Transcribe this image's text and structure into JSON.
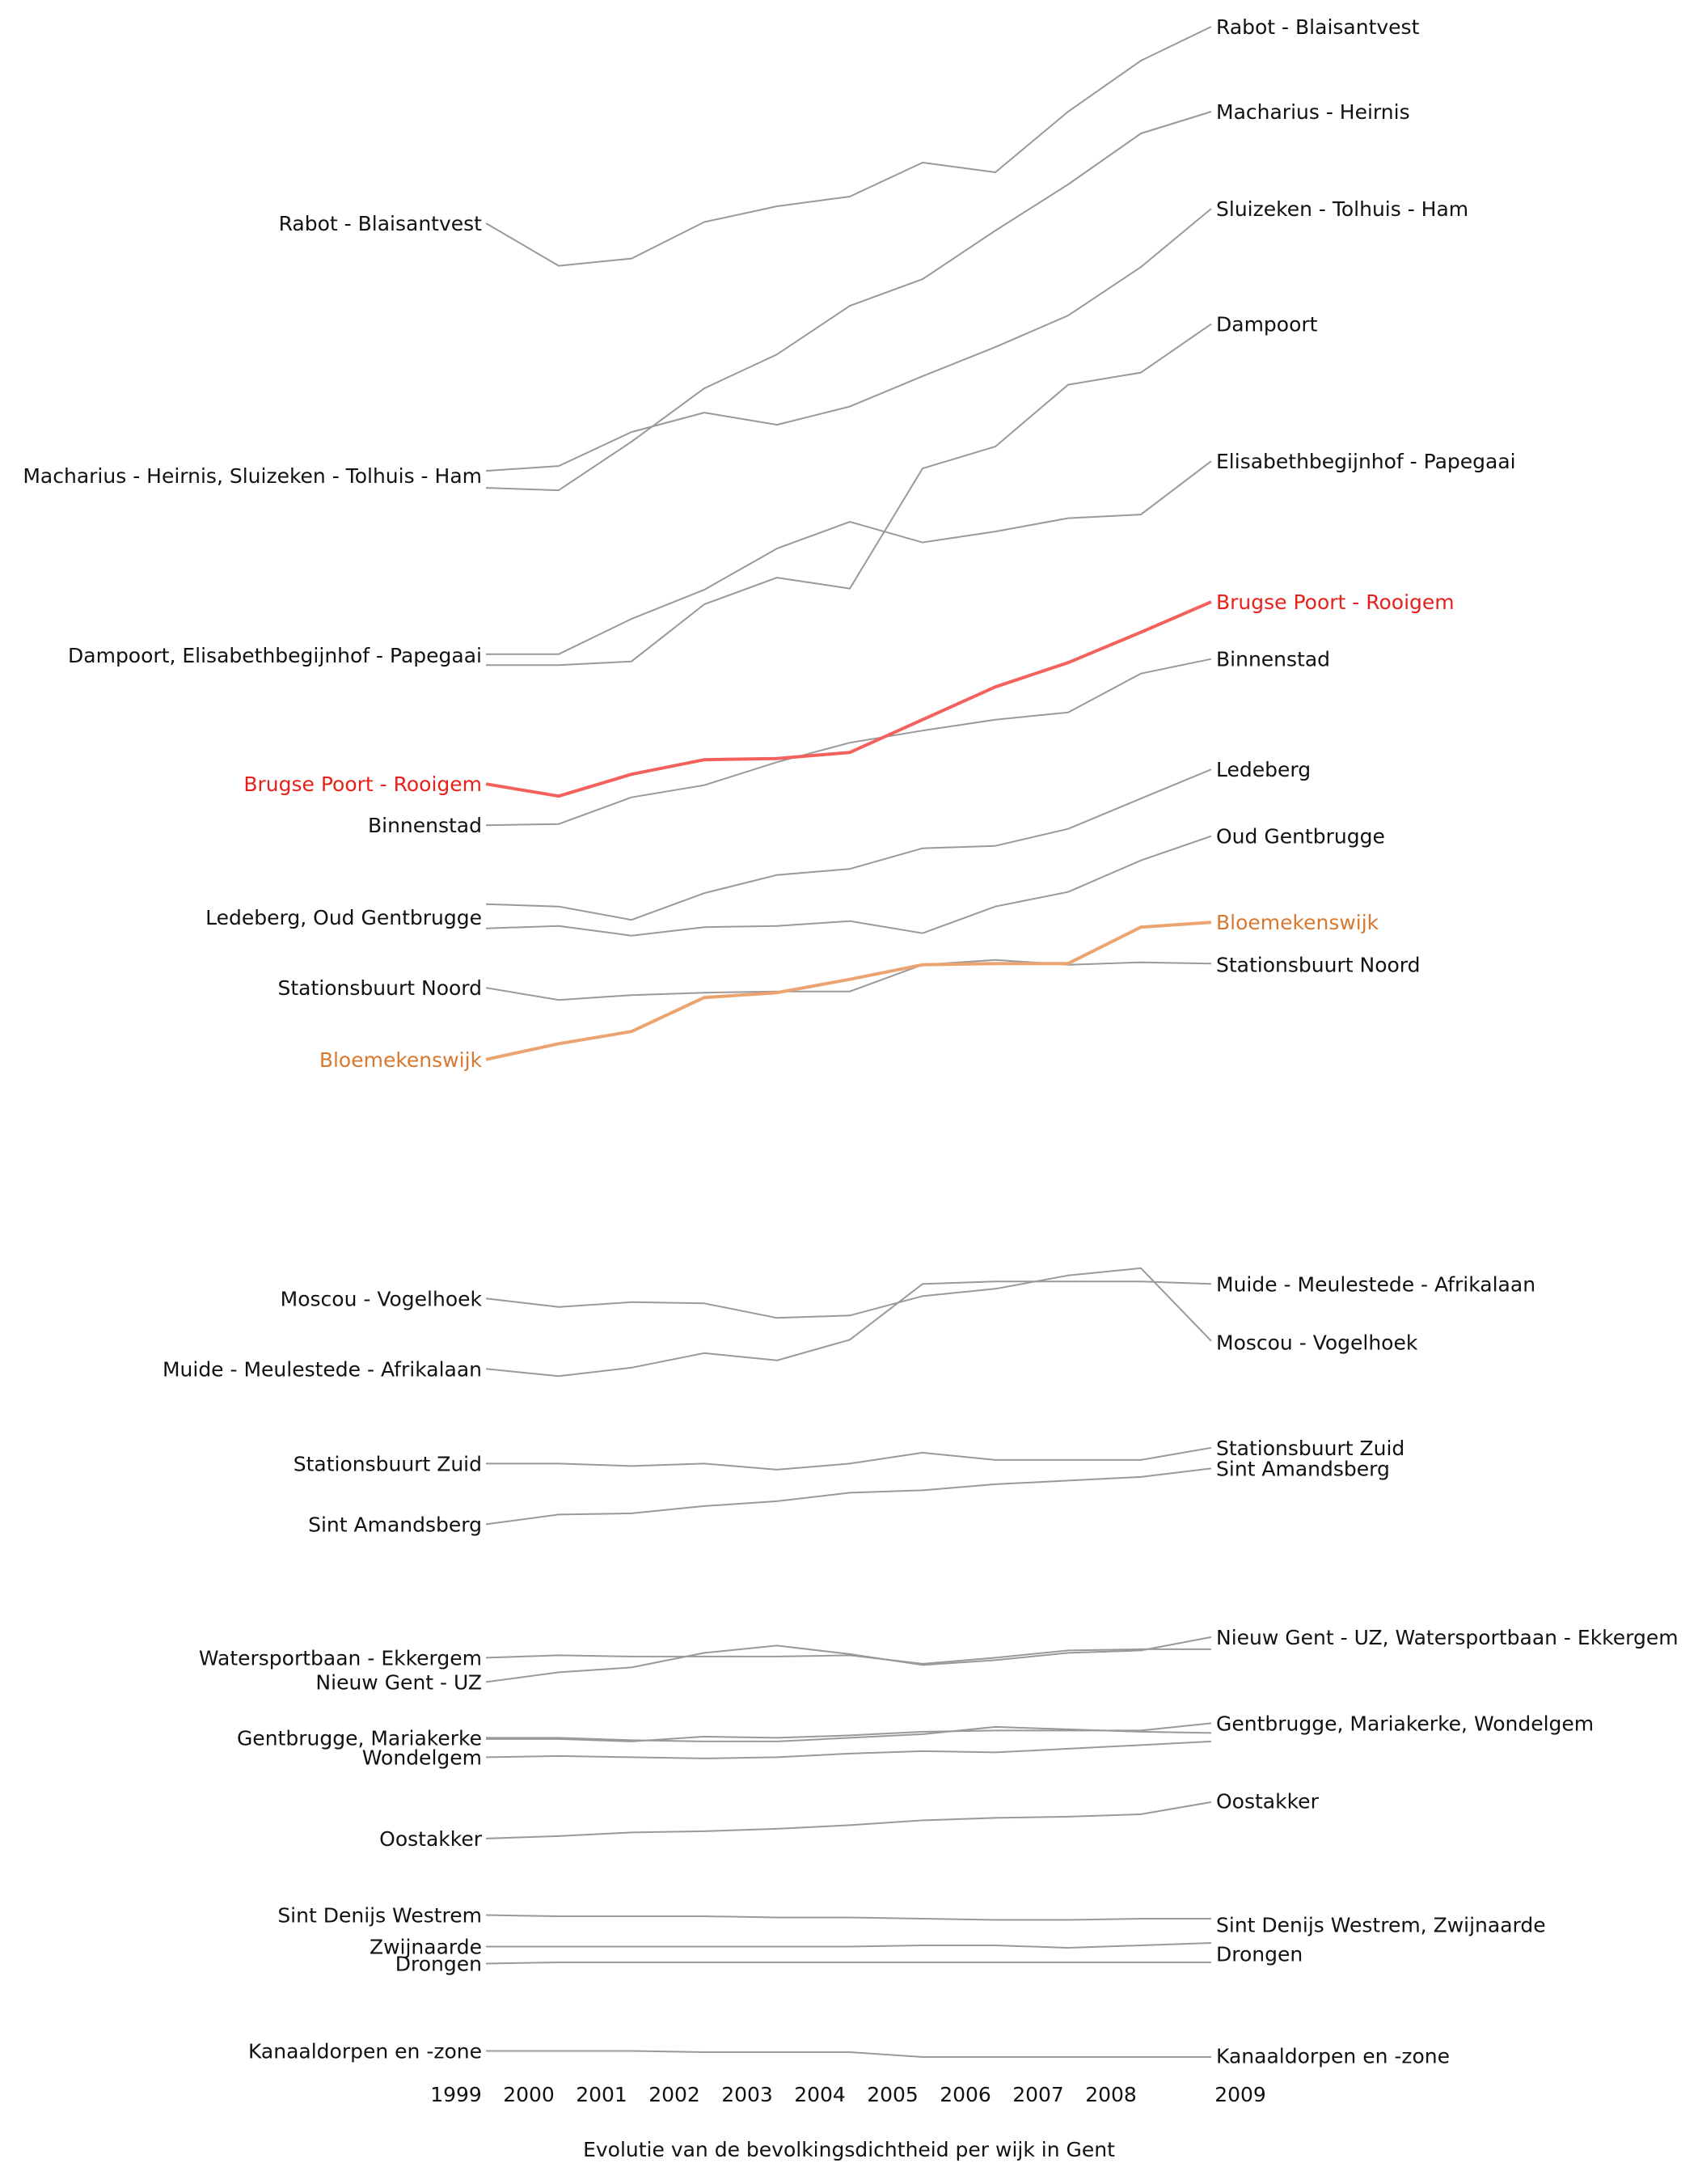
{
  "chart_data": {
    "type": "line",
    "title": "Evolutie van de bevolkingsdichtheid per wijk in Gent",
    "style": "slopegraph",
    "x_ticks": [
      "1999",
      "2000",
      "2001",
      "2002",
      "2003",
      "2004",
      "2005",
      "2006",
      "2007",
      "2008",
      "2009"
    ],
    "colors": {
      "default": "#999999",
      "label": "#111111",
      "highlight_red": "#f4615c",
      "highlight_red_label": "#e8201a",
      "highlight_orange": "#eba46f",
      "highlight_orange_label": "#d9782f"
    },
    "start_labels": [
      {
        "text": "Rabot - Blaisantvest",
        "value": 5590,
        "color": "label"
      },
      {
        "text": "Macharius - Heirnis, Sluizeken - Tolhuis - Ham",
        "value": 4550,
        "color": "label"
      },
      {
        "text": "Dampoort, Elisabethbegijnhof - Papegaai",
        "value": 3810,
        "color": "label"
      },
      {
        "text": "Brugse Poort - Rooigem",
        "value": 3280,
        "color": "highlight_red_label"
      },
      {
        "text": "Binnenstad",
        "value": 3110,
        "color": "label"
      },
      {
        "text": "Ledeberg, Oud Gentbrugge",
        "value": 2730,
        "color": "label"
      },
      {
        "text": "Stationsbuurt Noord",
        "value": 2440,
        "color": "label"
      },
      {
        "text": "Bloemekenswijk",
        "value": 2145,
        "color": "highlight_orange_label"
      },
      {
        "text": "Moscou - Vogelhoek",
        "value": 1160,
        "color": "label"
      },
      {
        "text": "Muide - Meulestede - Afrikalaan",
        "value": 870,
        "color": "label"
      },
      {
        "text": "Stationsbuurt Zuid",
        "value": 480,
        "color": "label"
      },
      {
        "text": "Sint Amandsberg",
        "value": 230,
        "color": "label"
      },
      {
        "text": "Watersportbaan - Ekkergem",
        "value": -320,
        "color": "label"
      },
      {
        "text": "Nieuw Gent - UZ",
        "value": -420,
        "color": "label"
      },
      {
        "text": "Gentbrugge, Mariakerke",
        "value": -650,
        "color": "label"
      },
      {
        "text": "Wondelgem",
        "value": -730,
        "color": "label"
      },
      {
        "text": "Oostakker",
        "value": -1065,
        "color": "label"
      },
      {
        "text": "Sint Denijs Westrem",
        "value": -1380,
        "color": "label"
      },
      {
        "text": "Zwijnaarde",
        "value": -1510,
        "color": "label"
      },
      {
        "text": "Drongen",
        "value": -1580,
        "color": "label"
      },
      {
        "text": "Kanaaldorpen en -zone",
        "value": -1940,
        "color": "label"
      }
    ],
    "end_labels": [
      {
        "text": "Rabot - Blaisantvest",
        "value": 6400,
        "color": "label"
      },
      {
        "text": "Macharius - Heirnis",
        "value": 6050,
        "color": "label"
      },
      {
        "text": "Sluizeken - Tolhuis - Ham",
        "value": 5650,
        "color": "label"
      },
      {
        "text": "Dampoort",
        "value": 5175,
        "color": "label"
      },
      {
        "text": "Elisabethbegijnhof - Papegaai",
        "value": 4610,
        "color": "label"
      },
      {
        "text": "Brugse Poort - Rooigem",
        "value": 4030,
        "color": "highlight_red_label"
      },
      {
        "text": "Binnenstad",
        "value": 3795,
        "color": "label"
      },
      {
        "text": "Ledeberg",
        "value": 3340,
        "color": "label"
      },
      {
        "text": "Oud Gentbrugge",
        "value": 3065,
        "color": "label"
      },
      {
        "text": "Bloemekenswijk",
        "value": 2710,
        "color": "highlight_orange_label"
      },
      {
        "text": "Stationsbuurt Noord",
        "value": 2535,
        "color": "label"
      },
      {
        "text": "Muide - Meulestede - Afrikalaan",
        "value": 1220,
        "color": "label"
      },
      {
        "text": "Moscou - Vogelhoek",
        "value": 980,
        "color": "label"
      },
      {
        "text": "Stationsbuurt Zuid",
        "value": 545,
        "color": "label"
      },
      {
        "text": "Sint Amandsberg",
        "value": 460,
        "color": "label"
      },
      {
        "text": "Nieuw Gent - UZ, Watersportbaan - Ekkergem",
        "value": -235,
        "color": "label"
      },
      {
        "text": "Gentbrugge, Mariakerke, Wondelgem",
        "value": -590,
        "color": "label"
      },
      {
        "text": "Oostakker",
        "value": -910,
        "color": "label"
      },
      {
        "text": "Sint Denijs Westrem, Zwijnaarde",
        "value": -1420,
        "color": "label"
      },
      {
        "text": "Drongen",
        "value": -1540,
        "color": "label"
      },
      {
        "text": "Kanaaldorpen en -zone",
        "value": -1960,
        "color": "label"
      }
    ],
    "series": [
      {
        "name": "Rabot - Blaisantvest",
        "color": "default",
        "values": [
          5590,
          5415,
          5445,
          5595,
          5660,
          5700,
          5840,
          5800,
          6050,
          6260,
          6400
        ]
      },
      {
        "name": "Macharius - Heirnis",
        "color": "default",
        "values": [
          4500,
          4490,
          4690,
          4910,
          5050,
          5250,
          5360,
          5560,
          5750,
          5960,
          6050
        ]
      },
      {
        "name": "Sluizeken - Tolhuis - Ham",
        "color": "default",
        "values": [
          4570,
          4590,
          4730,
          4810,
          4760,
          4835,
          4960,
          5080,
          5210,
          5410,
          5650
        ]
      },
      {
        "name": "Dampoort",
        "color": "default",
        "values": [
          3770,
          3770,
          3785,
          4020,
          4130,
          4085,
          4580,
          4670,
          4925,
          4975,
          5175
        ]
      },
      {
        "name": "Elisabethbegijnhof - Papegaai",
        "color": "default",
        "values": [
          3815,
          3815,
          3960,
          4080,
          4250,
          4360,
          4275,
          4320,
          4375,
          4390,
          4610
        ]
      },
      {
        "name": "Brugse Poort - Rooigem",
        "color": "highlight_red",
        "values": [
          3280,
          3230,
          3320,
          3380,
          3385,
          3410,
          3545,
          3680,
          3780,
          3905,
          4030
        ]
      },
      {
        "name": "Binnenstad",
        "color": "default",
        "values": [
          3110,
          3115,
          3225,
          3275,
          3370,
          3450,
          3500,
          3545,
          3575,
          3735,
          3795
        ]
      },
      {
        "name": "Ledeberg",
        "color": "default",
        "values": [
          2785,
          2775,
          2720,
          2830,
          2905,
          2930,
          3015,
          3025,
          3095,
          3220,
          3340
        ]
      },
      {
        "name": "Oud Gentbrugge",
        "color": "default",
        "values": [
          2685,
          2695,
          2655,
          2690,
          2695,
          2715,
          2665,
          2775,
          2835,
          2965,
          3065
        ]
      },
      {
        "name": "Stationsbuurt Noord",
        "color": "default",
        "values": [
          2440,
          2390,
          2410,
          2420,
          2425,
          2425,
          2535,
          2555,
          2535,
          2545,
          2540
        ]
      },
      {
        "name": "Bloemekenswijk",
        "color": "highlight_orange",
        "values": [
          2145,
          2210,
          2260,
          2400,
          2420,
          2475,
          2535,
          2540,
          2540,
          2690,
          2710
        ]
      },
      {
        "name": "Muide - Meulestede - Afrikalaan",
        "color": "default",
        "values": [
          870,
          840,
          875,
          935,
          905,
          990,
          1220,
          1230,
          1230,
          1230,
          1220
        ]
      },
      {
        "name": "Moscou - Vogelhoek",
        "color": "default",
        "values": [
          1160,
          1125,
          1145,
          1140,
          1080,
          1090,
          1170,
          1200,
          1255,
          1285,
          985
        ]
      },
      {
        "name": "Stationsbuurt Zuid",
        "color": "default",
        "values": [
          480,
          480,
          470,
          480,
          455,
          480,
          525,
          495,
          495,
          495,
          545
        ]
      },
      {
        "name": "Sint Amandsberg",
        "color": "default",
        "values": [
          230,
          270,
          275,
          305,
          325,
          360,
          370,
          395,
          410,
          425,
          460
        ]
      },
      {
        "name": "Watersportbaan - Ekkergem",
        "color": "default",
        "values": [
          -320,
          -310,
          -315,
          -315,
          -315,
          -310,
          -345,
          -320,
          -290,
          -285,
          -285
        ]
      },
      {
        "name": "Nieuw Gent - UZ",
        "color": "default",
        "values": [
          -420,
          -380,
          -360,
          -300,
          -270,
          -305,
          -350,
          -330,
          -300,
          -290,
          -235
        ]
      },
      {
        "name": "Gentbrugge",
        "color": "default",
        "values": [
          -655,
          -655,
          -665,
          -645,
          -650,
          -640,
          -625,
          -620,
          -620,
          -620,
          -590
        ]
      },
      {
        "name": "Mariakerke",
        "color": "default",
        "values": [
          -650,
          -650,
          -660,
          -665,
          -665,
          -650,
          -635,
          -605,
          -615,
          -625,
          -630
        ]
      },
      {
        "name": "Wondelgem",
        "color": "default",
        "values": [
          -730,
          -725,
          -730,
          -735,
          -730,
          -715,
          -705,
          -710,
          -695,
          -680,
          -665
        ]
      },
      {
        "name": "Oostakker",
        "color": "default",
        "values": [
          -1065,
          -1055,
          -1040,
          -1035,
          -1025,
          -1010,
          -990,
          -980,
          -975,
          -965,
          -915
        ]
      },
      {
        "name": "Sint Denijs Westrem",
        "color": "default",
        "values": [
          -1380,
          -1385,
          -1385,
          -1385,
          -1390,
          -1390,
          -1395,
          -1400,
          -1400,
          -1395,
          -1395
        ]
      },
      {
        "name": "Zwijnaarde",
        "color": "default",
        "values": [
          -1510,
          -1510,
          -1510,
          -1510,
          -1510,
          -1510,
          -1505,
          -1505,
          -1515,
          -1505,
          -1495
        ]
      },
      {
        "name": "Drongen",
        "color": "default",
        "values": [
          -1580,
          -1575,
          -1575,
          -1575,
          -1575,
          -1575,
          -1575,
          -1575,
          -1575,
          -1575,
          -1575
        ]
      },
      {
        "name": "Kanaaldorpen en -zone",
        "color": "default",
        "values": [
          -1940,
          -1940,
          -1940,
          -1945,
          -1945,
          -1945,
          -1965,
          -1965,
          -1965,
          -1965,
          -1965
        ]
      }
    ]
  }
}
